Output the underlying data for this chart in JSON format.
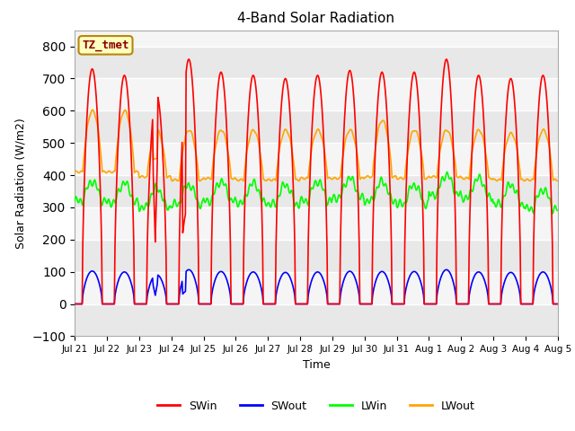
{
  "title": "4-Band Solar Radiation",
  "ylabel": "Solar Radiation (W/m2)",
  "xlabel": "Time",
  "ylim": [
    -100,
    850
  ],
  "yticks": [
    -100,
    0,
    100,
    200,
    300,
    400,
    500,
    600,
    700,
    800
  ],
  "label_text": "TZ_tmet",
  "colors": {
    "SWin": "#ff0000",
    "SWout": "#0000ff",
    "LWin": "#00ff00",
    "LWout": "#ffa500"
  },
  "tick_labels": [
    "Jul 21",
    "Jul 22",
    "Jul 23",
    "Jul 24",
    "Jul 25",
    "Jul 26",
    "Jul 27",
    "Jul 28",
    "Jul 29",
    "Jul 30",
    "Jul 31",
    "Aug 1",
    "Aug 2",
    "Aug 3",
    "Aug 4",
    "Aug 5"
  ],
  "n_days": 15
}
